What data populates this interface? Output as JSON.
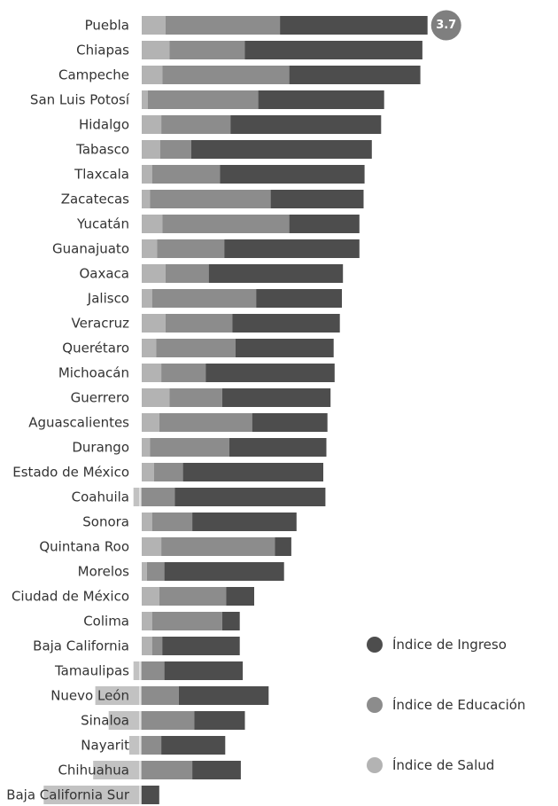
{
  "chart_data": {
    "type": "bar",
    "orientation": "horizontal",
    "stacked": true,
    "grid": false,
    "legend_position": "right",
    "categories": [
      "Puebla",
      "Chiapas",
      "Campeche",
      "San Luis Potosí",
      "Hidalgo",
      "Tabasco",
      "Tlaxcala",
      "Zacatecas",
      "Yucatán",
      "Guanajuato",
      "Oaxaca",
      "Jalisco",
      "Veracruz",
      "Querétaro",
      "Michoacán",
      "Guerrero",
      "Aguascalientes",
      "Durango",
      "Estado de México",
      "Coahuila",
      "Sonora",
      "Quintana Roo",
      "Morelos",
      "Ciudad de México",
      "Colima",
      "Baja California",
      "Tamaulipas",
      "Nuevo León",
      "Sinaloa",
      "Nayarit",
      "Chihuahua",
      "Baja California Sur"
    ],
    "series": [
      {
        "name": "Índice de Salud",
        "color": "#b3b3b3",
        "values": [
          0.23,
          0.27,
          0.2,
          0.06,
          0.19,
          0.18,
          0.1,
          0.08,
          0.2,
          0.15,
          0.23,
          0.1,
          0.23,
          0.14,
          0.19,
          0.27,
          0.17,
          0.08,
          0.12,
          -0.08,
          0.1,
          0.19,
          0.05,
          0.17,
          0.1,
          0.1,
          -0.08,
          -0.45,
          -0.32,
          -0.12,
          -0.47,
          -0.95
        ]
      },
      {
        "name": "Índice de Educación",
        "color": "#8c8c8c",
        "values": [
          1.11,
          0.73,
          1.23,
          1.07,
          0.67,
          0.3,
          0.66,
          1.17,
          1.23,
          0.65,
          0.42,
          1.01,
          0.65,
          0.77,
          0.43,
          0.51,
          0.9,
          0.77,
          0.28,
          0.32,
          0.39,
          1.1,
          0.17,
          0.65,
          0.68,
          0.1,
          0.22,
          0.36,
          0.51,
          0.19,
          0.49,
          0.0
        ]
      },
      {
        "name": "Índice de Ingreso",
        "color": "#4d4d4d",
        "values": [
          1.43,
          1.72,
          1.27,
          1.22,
          1.46,
          1.75,
          1.4,
          0.9,
          0.68,
          1.31,
          1.3,
          0.83,
          1.04,
          0.95,
          1.25,
          1.05,
          0.73,
          0.94,
          1.36,
          1.46,
          1.01,
          0.16,
          1.16,
          0.27,
          0.17,
          0.75,
          0.76,
          0.87,
          0.49,
          0.62,
          0.47,
          0.17
        ]
      }
    ],
    "annotations": [
      {
        "text": "3.7",
        "category": "Puebla"
      }
    ]
  }
}
